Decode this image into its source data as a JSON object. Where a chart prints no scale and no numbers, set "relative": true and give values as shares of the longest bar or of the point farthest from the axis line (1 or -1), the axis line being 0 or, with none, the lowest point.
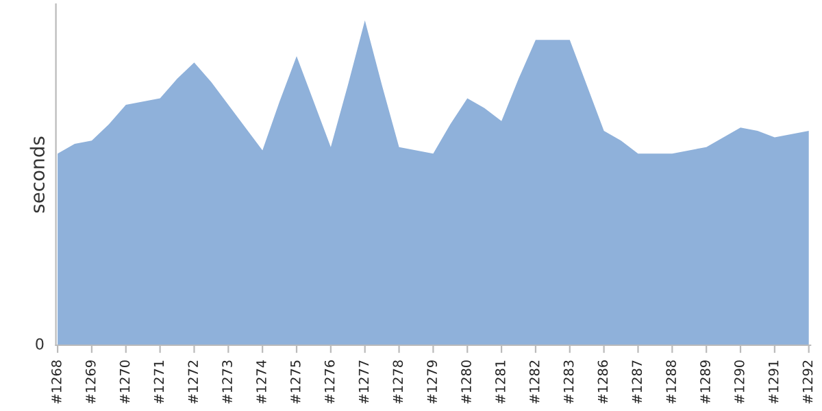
{
  "chart_data": {
    "type": "area",
    "ylabel": "seconds",
    "relative": true,
    "annotations": [
      "0"
    ],
    "grid": false,
    "legend": false,
    "categories": [
      "#1268",
      null,
      "#1269",
      null,
      "#1270",
      null,
      "#1271",
      null,
      "#1272",
      null,
      "#1273",
      null,
      "#1274",
      null,
      "#1275",
      null,
      "#1276",
      null,
      "#1277",
      null,
      "#1278",
      null,
      "#1279",
      null,
      "#1280",
      null,
      "#1281",
      null,
      "#1282",
      null,
      "#1283",
      null,
      "#1286",
      null,
      "#1287",
      null,
      "#1288",
      null,
      "#1289",
      null,
      "#1290",
      null,
      "#1291",
      null,
      "#1292"
    ],
    "series": [
      {
        "color": "#8fb1da",
        "values": [
          0.59,
          0.62,
          0.63,
          0.68,
          0.74,
          0.75,
          0.76,
          0.82,
          0.87,
          0.81,
          0.74,
          0.67,
          0.6,
          0.75,
          0.89,
          0.75,
          0.61,
          0.8,
          1,
          0.8,
          0.61,
          0.6,
          0.59,
          0.68,
          0.76,
          0.73,
          0.69,
          0.82,
          0.94,
          0.94,
          0.94,
          0.8,
          0.66,
          0.63,
          0.59,
          0.59,
          0.59,
          0.6,
          0.61,
          0.64,
          0.67,
          0.66,
          0.64,
          0.65,
          0.66
        ]
      }
    ]
  }
}
